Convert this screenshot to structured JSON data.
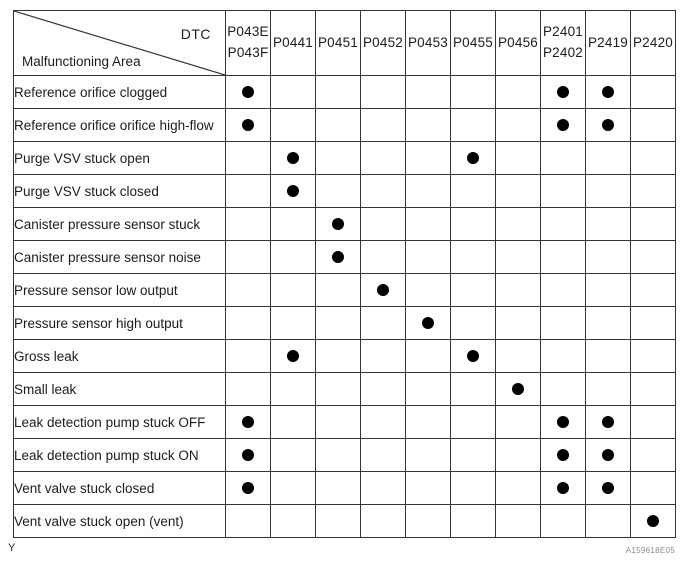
{
  "header": {
    "corner_top_right": "DTC",
    "corner_bottom_left": "Malfunctioning Area",
    "columns": [
      {
        "lines": [
          "P043E",
          "P043F"
        ]
      },
      {
        "lines": [
          "P0441"
        ]
      },
      {
        "lines": [
          "P0451"
        ]
      },
      {
        "lines": [
          "P0452"
        ]
      },
      {
        "lines": [
          "P0453"
        ]
      },
      {
        "lines": [
          "P0455"
        ]
      },
      {
        "lines": [
          "P0456"
        ]
      },
      {
        "lines": [
          "P2401",
          "P2402"
        ]
      },
      {
        "lines": [
          "P2419"
        ]
      },
      {
        "lines": [
          "P2420"
        ]
      }
    ]
  },
  "rows": [
    {
      "label": "Reference orifice clogged",
      "marks": [
        1,
        0,
        0,
        0,
        0,
        0,
        0,
        1,
        1,
        0
      ]
    },
    {
      "label": "Reference orifice orifice high-flow",
      "marks": [
        1,
        0,
        0,
        0,
        0,
        0,
        0,
        1,
        1,
        0
      ]
    },
    {
      "label": "Purge VSV stuck open",
      "marks": [
        0,
        1,
        0,
        0,
        0,
        1,
        0,
        0,
        0,
        0
      ]
    },
    {
      "label": "Purge VSV stuck closed",
      "marks": [
        0,
        1,
        0,
        0,
        0,
        0,
        0,
        0,
        0,
        0
      ]
    },
    {
      "label": "Canister pressure sensor stuck",
      "marks": [
        0,
        0,
        1,
        0,
        0,
        0,
        0,
        0,
        0,
        0
      ]
    },
    {
      "label": "Canister pressure sensor noise",
      "marks": [
        0,
        0,
        1,
        0,
        0,
        0,
        0,
        0,
        0,
        0
      ]
    },
    {
      "label": "Pressure sensor low output",
      "marks": [
        0,
        0,
        0,
        1,
        0,
        0,
        0,
        0,
        0,
        0
      ]
    },
    {
      "label": "Pressure sensor high output",
      "marks": [
        0,
        0,
        0,
        0,
        1,
        0,
        0,
        0,
        0,
        0
      ]
    },
    {
      "label": "Gross leak",
      "marks": [
        0,
        1,
        0,
        0,
        0,
        1,
        0,
        0,
        0,
        0
      ]
    },
    {
      "label": "Small leak",
      "marks": [
        0,
        0,
        0,
        0,
        0,
        0,
        1,
        0,
        0,
        0
      ]
    },
    {
      "label": "Leak detection pump stuck OFF",
      "marks": [
        1,
        0,
        0,
        0,
        0,
        0,
        0,
        1,
        1,
        0
      ]
    },
    {
      "label": "Leak detection pump stuck ON",
      "marks": [
        1,
        0,
        0,
        0,
        0,
        0,
        0,
        1,
        1,
        0
      ]
    },
    {
      "label": "Vent valve stuck closed",
      "marks": [
        1,
        0,
        0,
        0,
        0,
        0,
        0,
        1,
        1,
        0
      ]
    },
    {
      "label": "Vent valve stuck open (vent)",
      "marks": [
        0,
        0,
        0,
        0,
        0,
        0,
        0,
        0,
        0,
        1
      ]
    }
  ],
  "footer": {
    "left": "Y",
    "right": "A159618E05"
  },
  "colors": {
    "dot": "#000000",
    "border": "#353535",
    "text": "#1c1c1c",
    "background": "#ffffff"
  }
}
